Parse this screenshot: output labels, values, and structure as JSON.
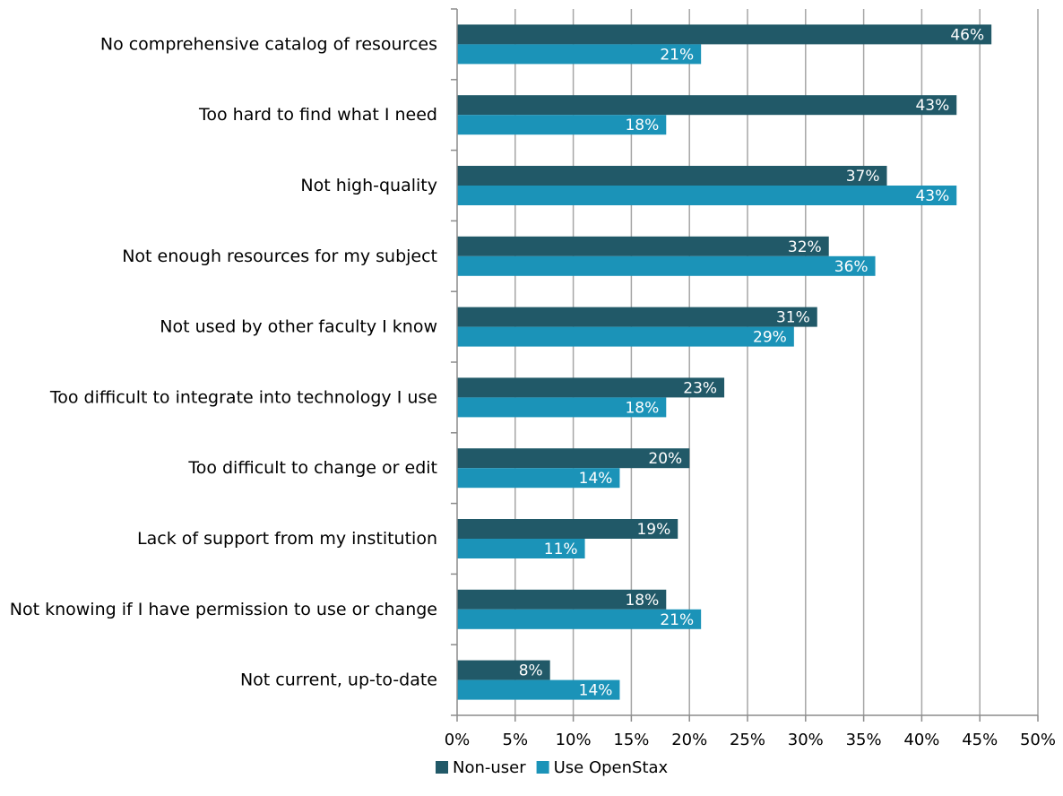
{
  "chart_data": {
    "type": "bar",
    "orientation": "horizontal",
    "title": "",
    "xlabel": "",
    "ylabel": "",
    "categories": [
      "No comprehensive catalog of resources",
      "Too hard to find what I need",
      "Not high-quality",
      "Not enough resources for my subject",
      "Not used by other faculty I know",
      "Too difficult to integrate into technology I use",
      "Too difficult to change or edit",
      "Lack of support from my institution",
      "Not knowing if I have permission to use or change",
      "Not current, up-to-date"
    ],
    "series": [
      {
        "name": "Non-user",
        "color": "#215968",
        "values": [
          46,
          43,
          37,
          32,
          31,
          23,
          20,
          19,
          18,
          8
        ],
        "labels": [
          "46%",
          "43%",
          "37%",
          "32%",
          "31%",
          "23%",
          "20%",
          "19%",
          "18%",
          "8%"
        ]
      },
      {
        "name": "Use OpenStax",
        "color": "#1b93b8",
        "values": [
          21,
          18,
          43,
          36,
          29,
          18,
          14,
          11,
          21,
          14
        ],
        "labels": [
          "21%",
          "18%",
          "43%",
          "36%",
          "29%",
          "18%",
          "14%",
          "11%",
          "21%",
          "14%"
        ]
      }
    ],
    "xlim": [
      0,
      50
    ],
    "xticks": [
      "0%",
      "5%",
      "10%",
      "15%",
      "20%",
      "25%",
      "30%",
      "35%",
      "40%",
      "45%",
      "50%"
    ],
    "grid": true,
    "legend": "bottom"
  }
}
